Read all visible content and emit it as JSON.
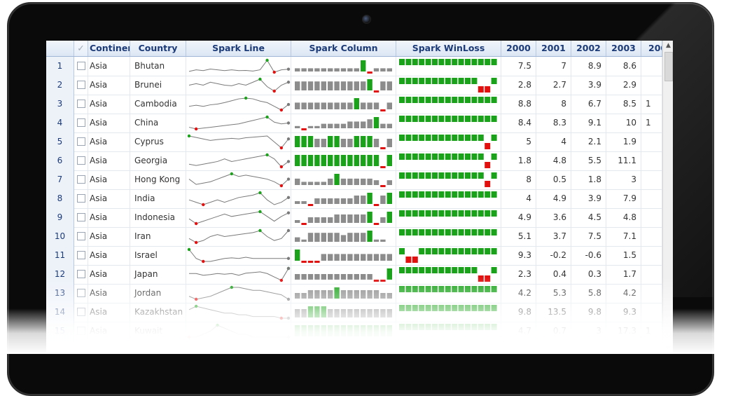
{
  "grid": {
    "headers": {
      "check": "✓",
      "continent": "Continent",
      "country": "Country",
      "spark_line": "Spark Line",
      "spark_column": "Spark Column",
      "spark_winloss": "Spark WinLoss",
      "y2000": "2000",
      "y2001": "2001",
      "y2002": "2002",
      "y2003": "2003",
      "y2004": "200"
    },
    "rows": [
      {
        "n": "1",
        "continent": "Asia",
        "country": "Bhutan",
        "y2000": "7.5",
        "y2001": "7",
        "y2002": "8.9",
        "y2003": "8.6",
        "y2004": "",
        "line": [
          2,
          3,
          2.5,
          3.5,
          3,
          2.5,
          3,
          2.5,
          2.6,
          2.2,
          3,
          9,
          1.5,
          3,
          3.4
        ],
        "col": [
          2,
          2,
          2,
          2,
          2,
          2,
          2,
          2,
          2,
          2,
          7,
          -1,
          2,
          2,
          2
        ],
        "wl": [
          1,
          1,
          1,
          1,
          1,
          1,
          1,
          1,
          1,
          1,
          1,
          1,
          1,
          1,
          1
        ]
      },
      {
        "n": "2",
        "continent": "Asia",
        "country": "Brunei",
        "y2000": "2.8",
        "y2001": "2.7",
        "y2002": "3.9",
        "y2003": "2.9",
        "y2004": "",
        "line": [
          5,
          5.5,
          5,
          6,
          5.5,
          5,
          4.8,
          5.5,
          5,
          6,
          7,
          4.5,
          3,
          5,
          6
        ],
        "col": [
          4,
          4,
          4,
          4,
          4,
          4,
          4,
          4,
          4,
          4,
          4,
          5,
          -1,
          4,
          4
        ],
        "wl": [
          1,
          1,
          1,
          1,
          1,
          1,
          1,
          1,
          1,
          1,
          1,
          1,
          -1,
          -1,
          1
        ]
      },
      {
        "n": "3",
        "continent": "Asia",
        "country": "Cambodia",
        "y2000": "8.8",
        "y2001": "8",
        "y2002": "6.7",
        "y2003": "8.5",
        "y2004": "1",
        "line": [
          4,
          4.3,
          4,
          4.4,
          4.6,
          5,
          5.5,
          6,
          6.2,
          6,
          5.4,
          5,
          4,
          3,
          4.5
        ],
        "col": [
          3,
          3,
          3,
          3,
          3,
          3,
          3,
          3,
          3,
          5,
          3,
          3,
          3,
          -1,
          3
        ],
        "wl": [
          1,
          1,
          1,
          1,
          1,
          1,
          1,
          1,
          1,
          1,
          1,
          1,
          1,
          1,
          1
        ]
      },
      {
        "n": "4",
        "continent": "Asia",
        "country": "China",
        "y2000": "8.4",
        "y2001": "8.3",
        "y2002": "9.1",
        "y2003": "10",
        "y2004": "1",
        "line": [
          2,
          1,
          1.5,
          2,
          2.5,
          3,
          3.5,
          4,
          5,
          6,
          7,
          8,
          5,
          4,
          4.5
        ],
        "col": [
          1,
          -1,
          1,
          1,
          2,
          2,
          2,
          2,
          3,
          3,
          3,
          4,
          5,
          2,
          2
        ],
        "wl": [
          1,
          1,
          1,
          1,
          1,
          1,
          1,
          1,
          1,
          1,
          1,
          1,
          1,
          1,
          1
        ]
      },
      {
        "n": "5",
        "continent": "Asia",
        "country": "Cyprus",
        "y2000": "5",
        "y2001": "4",
        "y2002": "2.1",
        "y2003": "1.9",
        "y2004": "",
        "line": [
          6,
          5.5,
          5,
          4.5,
          4.8,
          5,
          5.2,
          5,
          5.4,
          5.6,
          5.8,
          6,
          4,
          2,
          5
        ],
        "col": [
          4,
          4,
          4,
          3,
          3,
          4,
          4,
          3,
          3,
          4,
          4,
          4,
          3,
          -1,
          3
        ],
        "wl": [
          1,
          1,
          1,
          1,
          1,
          1,
          1,
          1,
          1,
          1,
          1,
          1,
          1,
          -1,
          1
        ]
      },
      {
        "n": "6",
        "continent": "Asia",
        "country": "Georgia",
        "y2000": "1.8",
        "y2001": "4.8",
        "y2002": "5.5",
        "y2003": "11.1",
        "y2004": "",
        "line": [
          4,
          3.5,
          4,
          4.5,
          5,
          6,
          5,
          5.5,
          6,
          6.5,
          7,
          7.5,
          6,
          3,
          5
        ],
        "col": [
          3,
          3,
          3,
          3,
          3,
          3,
          3,
          3,
          3,
          3,
          3,
          3,
          3,
          -1,
          3
        ],
        "wl": [
          1,
          1,
          1,
          1,
          1,
          1,
          1,
          1,
          1,
          1,
          1,
          1,
          1,
          -1,
          1
        ]
      },
      {
        "n": "7",
        "continent": "Asia",
        "country": "Hong Kong",
        "y2000": "8",
        "y2001": "0.5",
        "y2002": "1.8",
        "y2003": "3",
        "y2004": "",
        "line": [
          5,
          3,
          3.5,
          4,
          5,
          6,
          7,
          6,
          6.5,
          6,
          5.5,
          5,
          4,
          2.5,
          5
        ],
        "col": [
          4,
          2,
          2,
          2,
          2,
          4,
          7,
          4,
          4,
          4,
          4,
          4,
          3,
          -1,
          3
        ],
        "wl": [
          1,
          1,
          1,
          1,
          1,
          1,
          1,
          1,
          1,
          1,
          1,
          1,
          1,
          -1,
          1
        ]
      },
      {
        "n": "8",
        "continent": "Asia",
        "country": "India",
        "y2000": "4",
        "y2001": "4.9",
        "y2002": "3.9",
        "y2003": "7.9",
        "y2004": "",
        "line": [
          5,
          4,
          3,
          4,
          5,
          4,
          5,
          6,
          6.5,
          7,
          8,
          5,
          3,
          4,
          6
        ],
        "col": [
          1,
          1,
          -1,
          2,
          2,
          2,
          2,
          2,
          2,
          3,
          3,
          4,
          -1,
          3,
          4
        ],
        "wl": [
          1,
          1,
          1,
          1,
          1,
          1,
          1,
          1,
          1,
          1,
          1,
          1,
          1,
          1,
          1
        ]
      },
      {
        "n": "9",
        "continent": "Asia",
        "country": "Indonesia",
        "y2000": "4.9",
        "y2001": "3.6",
        "y2002": "4.5",
        "y2003": "4.8",
        "y2004": "",
        "line": [
          4,
          2,
          3,
          4,
          5,
          6,
          5,
          5.5,
          6,
          6.5,
          7,
          5,
          3,
          5,
          6.5
        ],
        "col": [
          1,
          -1,
          2,
          2,
          2,
          2,
          3,
          3,
          3,
          3,
          3,
          4,
          -1,
          2,
          4
        ],
        "wl": [
          1,
          1,
          1,
          1,
          1,
          1,
          1,
          1,
          1,
          1,
          1,
          1,
          1,
          1,
          1
        ]
      },
      {
        "n": "10",
        "continent": "Asia",
        "country": "Iran",
        "y2000": "5.1",
        "y2001": "3.7",
        "y2002": "7.5",
        "y2003": "7.1",
        "y2004": "",
        "line": [
          4,
          2,
          3,
          5,
          6,
          5,
          5.5,
          6,
          6.5,
          7,
          8,
          5,
          3,
          4,
          8
        ],
        "col": [
          2,
          1,
          4,
          4,
          4,
          4,
          4,
          3,
          4,
          4,
          4,
          5,
          1,
          1,
          0
        ],
        "wl": [
          1,
          1,
          1,
          1,
          1,
          1,
          1,
          1,
          1,
          1,
          1,
          1,
          1,
          1,
          1
        ]
      },
      {
        "n": "11",
        "continent": "Asia",
        "country": "Israel",
        "y2000": "9.3",
        "y2001": "-0.2",
        "y2002": "-0.6",
        "y2003": "1.5",
        "y2004": "",
        "line": [
          8,
          5,
          4,
          4,
          4.5,
          5,
          5.2,
          5,
          5.4,
          5,
          5,
          5,
          5,
          5,
          5
        ],
        "col": [
          5,
          -1,
          -1,
          -1,
          3,
          3,
          3,
          3,
          3,
          3,
          3,
          3,
          3,
          3,
          3
        ],
        "wl": [
          1,
          -1,
          -1,
          1,
          1,
          1,
          1,
          1,
          1,
          1,
          1,
          1,
          1,
          1,
          1
        ]
      },
      {
        "n": "12",
        "continent": "Asia",
        "country": "Japan",
        "y2000": "2.3",
        "y2001": "0.4",
        "y2002": "0.3",
        "y2003": "1.7",
        "y2004": "",
        "line": [
          4.5,
          4.5,
          4,
          4.2,
          4.5,
          4.3,
          4.5,
          4,
          4.6,
          4.8,
          5,
          4.5,
          3.5,
          2.5,
          6
        ],
        "col": [
          2,
          2,
          2,
          2,
          2,
          2,
          2,
          2,
          2,
          2,
          2,
          2,
          -1,
          -1,
          4
        ],
        "wl": [
          1,
          1,
          1,
          1,
          1,
          1,
          1,
          1,
          1,
          1,
          1,
          1,
          -1,
          -1,
          1
        ]
      },
      {
        "n": "13",
        "continent": "Asia",
        "country": "Jordan",
        "y2000": "4.2",
        "y2001": "5.3",
        "y2002": "5.8",
        "y2003": "4.2",
        "y2004": "",
        "line": [
          4,
          3,
          3.5,
          4,
          5,
          6,
          7,
          7,
          6.5,
          6,
          6,
          5.5,
          5,
          4.5,
          3
        ],
        "col": [
          2,
          2,
          3,
          3,
          3,
          3,
          4,
          3,
          3,
          3,
          3,
          3,
          3,
          2,
          2
        ],
        "wl": [
          1,
          1,
          1,
          1,
          1,
          1,
          1,
          1,
          1,
          1,
          1,
          1,
          1,
          1,
          1
        ]
      },
      {
        "n": "14",
        "continent": "Asia",
        "country": "Kazakhstan",
        "y2000": "9.8",
        "y2001": "13.5",
        "y2002": "9.8",
        "y2003": "9.3",
        "y2004": "",
        "line": [
          5,
          6,
          5.5,
          5,
          4.5,
          4,
          4,
          3.5,
          3.5,
          3,
          3,
          3,
          3,
          2.5,
          2.5
        ],
        "col": [
          3,
          3,
          4,
          4,
          4,
          3,
          3,
          3,
          3,
          3,
          3,
          3,
          3,
          3,
          3
        ],
        "wl": [
          1,
          1,
          1,
          1,
          1,
          1,
          1,
          1,
          1,
          1,
          1,
          1,
          1,
          1,
          1
        ]
      },
      {
        "n": "15",
        "continent": "Asia",
        "country": "Kuwait",
        "y2000": "4.7",
        "y2001": "0.7",
        "y2002": "3",
        "y2003": "17.3",
        "y2004": "1",
        "line": [
          4,
          4,
          4.5,
          5,
          6,
          5.5,
          5,
          4.5,
          4.5,
          4,
          4,
          4,
          4,
          4,
          4
        ],
        "col": [
          3,
          3,
          3,
          3,
          3,
          3,
          3,
          3,
          3,
          3,
          3,
          3,
          3,
          3,
          3
        ],
        "wl": [
          1,
          1,
          1,
          1,
          1,
          1,
          1,
          1,
          1,
          1,
          1,
          1,
          1,
          1,
          1
        ]
      }
    ]
  },
  "colors": {
    "win": "#1aa31a",
    "loss": "#e31010",
    "column": "#8c8c8c",
    "column_max": "#1aa31a",
    "line": "#7a7a7a",
    "header_text": "#1b3a78"
  }
}
